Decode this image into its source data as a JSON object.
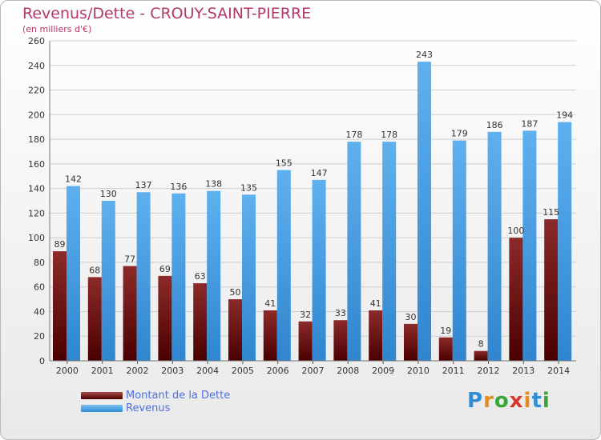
{
  "header": {
    "title": "Revenus/Dette - CROUY-SAINT-PIERRE",
    "subtitle": "(en milliers d'€)"
  },
  "legend": {
    "debt_label": "Montant de la Dette",
    "revenue_label": "Revenus"
  },
  "logo": {
    "text": "Proxiti",
    "letters": [
      {
        "ch": "P",
        "color": "#2f8ed6"
      },
      {
        "ch": "r",
        "color": "#e98a1c"
      },
      {
        "ch": "o",
        "color": "#3aa63a"
      },
      {
        "ch": "x",
        "color": "#d43a2a"
      },
      {
        "ch": "i",
        "color": "#e98a1c"
      },
      {
        "ch": "t",
        "color": "#2f8ed6"
      },
      {
        "ch": "i",
        "color": "#3aa63a"
      }
    ]
  },
  "colors": {
    "title": "#b4386a",
    "debt": "#6e1515",
    "revenue": "#3d98e0",
    "grid": "#cfcfcf",
    "text": "#333333"
  },
  "chart_data": {
    "type": "bar",
    "title": "Revenus/Dette - CROUY-SAINT-PIERRE",
    "subtitle": "(en milliers d'€)",
    "categories": [
      "2000",
      "2001",
      "2002",
      "2003",
      "2004",
      "2005",
      "2006",
      "2007",
      "2008",
      "2009",
      "2010",
      "2011",
      "2012",
      "2013",
      "2014"
    ],
    "series": [
      {
        "name": "Montant de la Dette",
        "values": [
          89,
          68,
          77,
          69,
          63,
          50,
          41,
          32,
          33,
          41,
          30,
          19,
          8,
          100,
          115
        ]
      },
      {
        "name": "Revenus",
        "values": [
          142,
          130,
          137,
          136,
          138,
          135,
          155,
          147,
          178,
          178,
          243,
          179,
          186,
          187,
          194
        ]
      }
    ],
    "ylim": [
      0,
      260
    ],
    "yticks": [
      0,
      20,
      40,
      60,
      80,
      100,
      120,
      140,
      160,
      180,
      200,
      220,
      240,
      260
    ],
    "grid": true,
    "legend_position": "bottom-left"
  }
}
